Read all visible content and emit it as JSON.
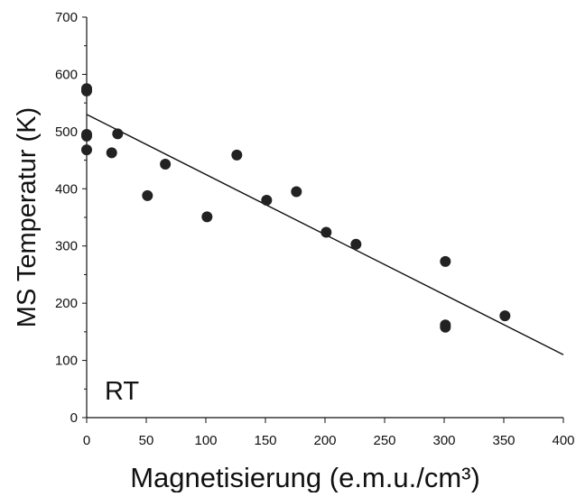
{
  "chart_data": {
    "type": "scatter",
    "title": "",
    "xlabel": "Magnetisierung (e.m.u./cm³)",
    "ylabel": "MS Temperatur (K)",
    "xlim": [
      0,
      400
    ],
    "ylim": [
      0,
      700
    ],
    "xticks": [
      0,
      50,
      100,
      150,
      200,
      250,
      300,
      350,
      400
    ],
    "yticks": [
      0,
      100,
      200,
      300,
      400,
      500,
      600,
      700
    ],
    "grid": false,
    "annotation": "RT",
    "series": [
      {
        "points": [
          {
            "x": 0,
            "y": 575
          },
          {
            "x": 0,
            "y": 571
          },
          {
            "x": 0,
            "y": 495
          },
          {
            "x": 0,
            "y": 492
          },
          {
            "x": 0,
            "y": 468
          },
          {
            "x": 21,
            "y": 463
          },
          {
            "x": 26,
            "y": 496
          },
          {
            "x": 51,
            "y": 388
          },
          {
            "x": 66,
            "y": 443
          },
          {
            "x": 101,
            "y": 351
          },
          {
            "x": 126,
            "y": 459
          },
          {
            "x": 151,
            "y": 380
          },
          {
            "x": 176,
            "y": 395
          },
          {
            "x": 201,
            "y": 324
          },
          {
            "x": 226,
            "y": 303
          },
          {
            "x": 301,
            "y": 273
          },
          {
            "x": 301,
            "y": 162
          },
          {
            "x": 301,
            "y": 158
          },
          {
            "x": 351,
            "y": 178
          }
        ],
        "color": "#222222"
      }
    ],
    "trendline": {
      "x": [
        0,
        400
      ],
      "y": [
        530,
        110
      ],
      "color": "#111111"
    }
  }
}
